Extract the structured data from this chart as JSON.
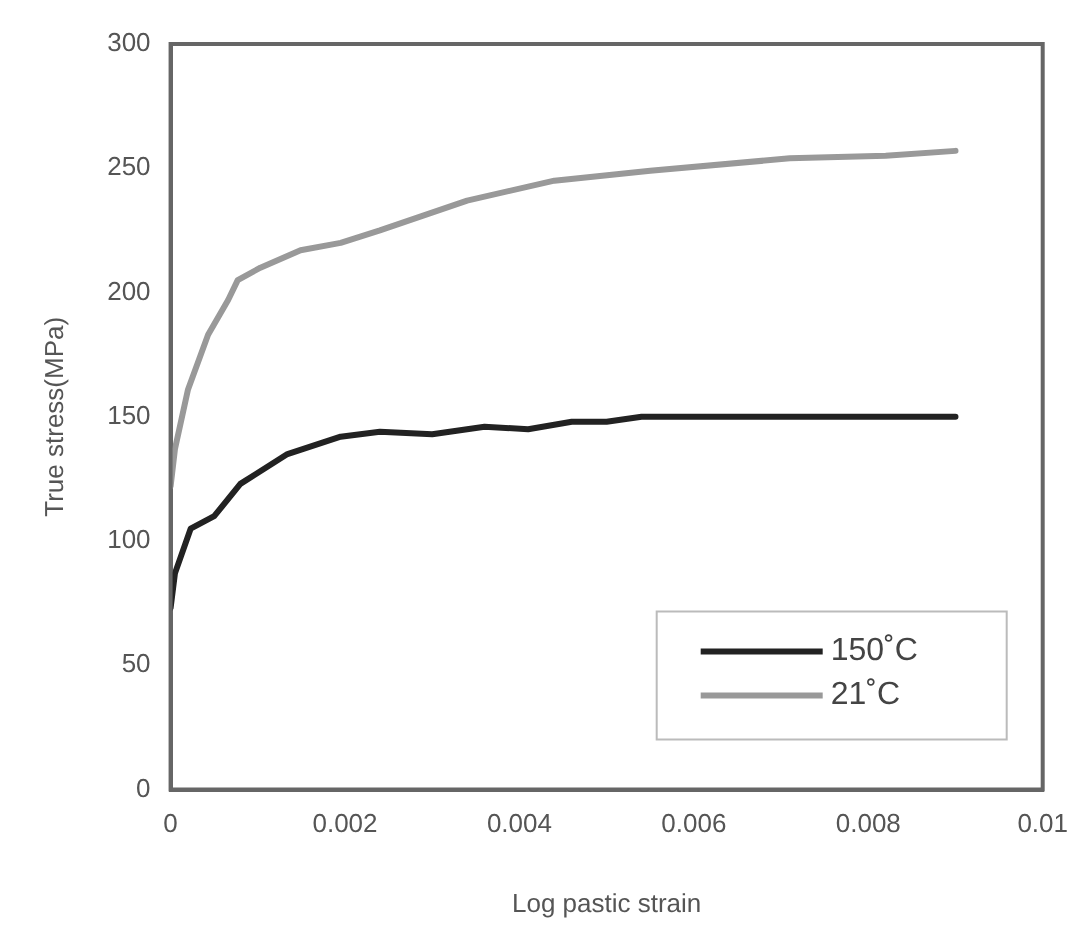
{
  "chart_data": {
    "type": "line",
    "xlabel": "Log pastic strain",
    "ylabel": "True stress(MPa)",
    "xlim": [
      0,
      0.01
    ],
    "xticks": [
      0,
      0.002,
      0.004,
      0.006,
      0.008,
      0.01
    ],
    "ylim": [
      0,
      300
    ],
    "yticks": [
      0,
      50,
      100,
      150,
      200,
      250,
      300
    ],
    "grid": false,
    "legend": "bottom right",
    "marker": "none",
    "line_style": "solid",
    "series": [
      {
        "name": "150˚C",
        "color": "#222222",
        "x": [
          0,
          5e-05,
          0.00023,
          0.0005,
          0.0008,
          0.00134,
          0.00195,
          0.0024,
          0.003,
          0.0036,
          0.0041,
          0.0046,
          0.005,
          0.0054,
          0.009
        ],
        "values": [
          73,
          87,
          105,
          110,
          123,
          135,
          142,
          144,
          143,
          146,
          145,
          148,
          148,
          150,
          150
        ]
      },
      {
        "name": "21˚C",
        "color": "#999999",
        "x": [
          0,
          5e-05,
          0.0002,
          0.00043,
          0.00066,
          0.00077,
          0.00103,
          0.00149,
          0.00195,
          0.0024,
          0.0034,
          0.0044,
          0.0055,
          0.0071,
          0.0082,
          0.009
        ],
        "values": [
          122,
          137,
          161,
          183,
          197,
          205,
          210,
          217,
          220,
          225,
          237,
          245,
          249,
          254,
          255,
          257
        ]
      }
    ]
  }
}
